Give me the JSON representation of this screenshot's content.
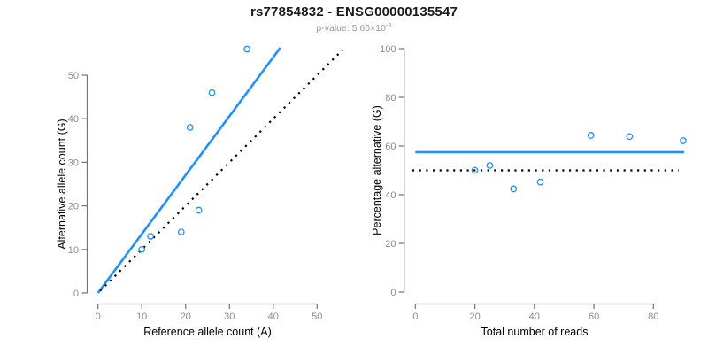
{
  "header": {
    "title": "rs77854832 - ENSG00000135547",
    "p_value_prefix": "p-value: 5.66×10",
    "p_value_exponent": "-3"
  },
  "colors": {
    "accent_blue": "#1E90FF",
    "axis_line": "#737373",
    "tick_label": "#8C8C8C",
    "axis_title": "#000000",
    "dotted_line": "#000000",
    "background": "#FFFFFF"
  },
  "chart_data": [
    {
      "name": "allele-counts-scatter",
      "type": "scatter",
      "xlabel": "Reference allele count (A)",
      "ylabel": "Alternative allele count (G)",
      "xlim": [
        0,
        55
      ],
      "ylim": [
        0,
        56.5
      ],
      "xticks": [
        0,
        10,
        20,
        30,
        40,
        50
      ],
      "yticks": [
        0,
        10,
        20,
        30,
        40,
        50
      ],
      "grid": false,
      "legend": "none",
      "points": [
        [
          10,
          10
        ],
        [
          12,
          13
        ],
        [
          19,
          14
        ],
        [
          23,
          19
        ],
        [
          21,
          38
        ],
        [
          26,
          46
        ],
        [
          34,
          56
        ]
      ],
      "lines": [
        {
          "name": "regression-line",
          "style": "solid",
          "x1": 0,
          "y1": 0,
          "x2": 41.6,
          "y2": 56.3
        },
        {
          "name": "identity-line",
          "style": "dotted",
          "x1": 0.5,
          "y1": 0.5,
          "x2": 55.8,
          "y2": 55.8
        }
      ]
    },
    {
      "name": "percentage-vs-reads-scatter",
      "type": "scatter",
      "xlabel": "Total number of reads",
      "ylabel": "Percentage alternative (G)",
      "xlim": [
        0,
        90
      ],
      "ylim": [
        0,
        100
      ],
      "xticks": [
        0,
        20,
        40,
        60,
        80
      ],
      "yticks": [
        0,
        20,
        40,
        60,
        80,
        100
      ],
      "grid": false,
      "legend": "none",
      "points": [
        [
          20,
          50
        ],
        [
          25,
          52
        ],
        [
          33,
          42.4
        ],
        [
          42,
          45.2
        ],
        [
          59,
          64.4
        ],
        [
          72,
          63.9
        ],
        [
          90,
          62.2
        ]
      ],
      "lines": [
        {
          "name": "mean-percentage-line",
          "style": "solid",
          "x1": 0,
          "y1": 57.5,
          "x2": 90.3,
          "y2": 57.5
        },
        {
          "name": "fifty-percent-line",
          "style": "dotted",
          "x1": -1,
          "y1": 50,
          "x2": 88.5,
          "y2": 50
        }
      ]
    }
  ]
}
